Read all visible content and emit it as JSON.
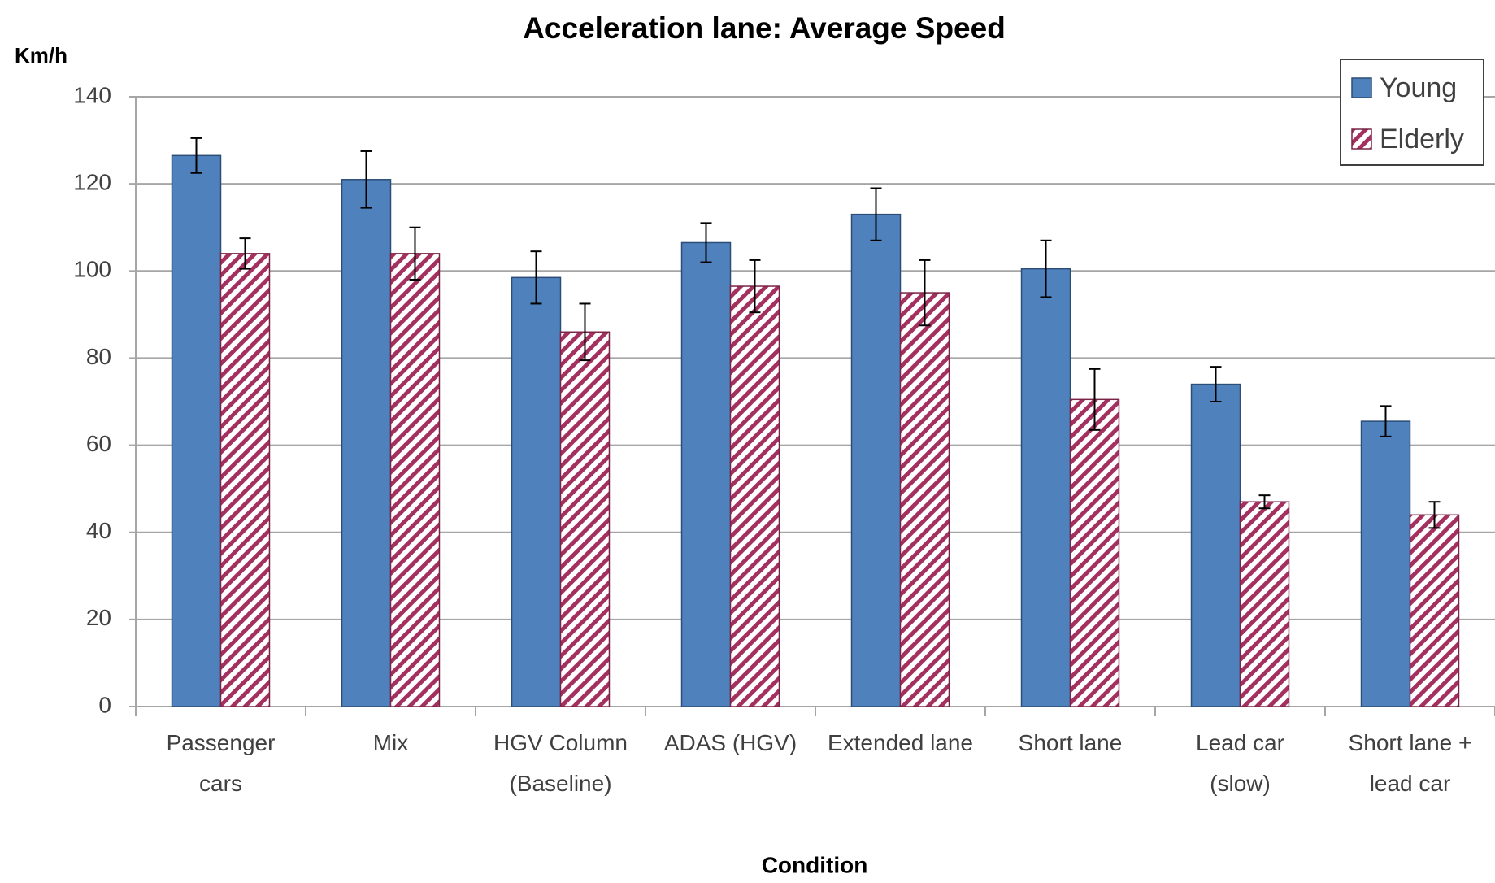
{
  "chart_data": {
    "type": "bar",
    "title": "Acceleration lane: Average Speed",
    "y_label": "Km/h",
    "x_label": "Condition",
    "categories": [
      "Passenger cars",
      "Mix",
      "HGV Column (Baseline)",
      "ADAS (HGV)",
      "Extended lane",
      "Short lane",
      "Lead car (slow)",
      "Short lane + lead car"
    ],
    "series": [
      {
        "name": "Young",
        "color": "#4f81bd",
        "values": [
          126.5,
          121,
          98.5,
          106.5,
          113,
          100.5,
          74,
          65.5
        ],
        "errors": [
          4,
          6.5,
          6,
          4.5,
          6,
          6.5,
          4,
          3.5
        ]
      },
      {
        "name": "Elderly",
        "color": "#a3305f",
        "pattern": "hatch",
        "values": [
          104,
          104,
          86,
          96.5,
          95,
          70.5,
          47,
          44
        ],
        "errors": [
          3.5,
          6,
          6.5,
          6,
          7.5,
          7,
          1.5,
          3
        ]
      }
    ],
    "ylim": [
      0,
      140
    ],
    "yticks": [
      0,
      20,
      40,
      60,
      80,
      100,
      120,
      140
    ],
    "grid": true,
    "legend": "upper right"
  }
}
